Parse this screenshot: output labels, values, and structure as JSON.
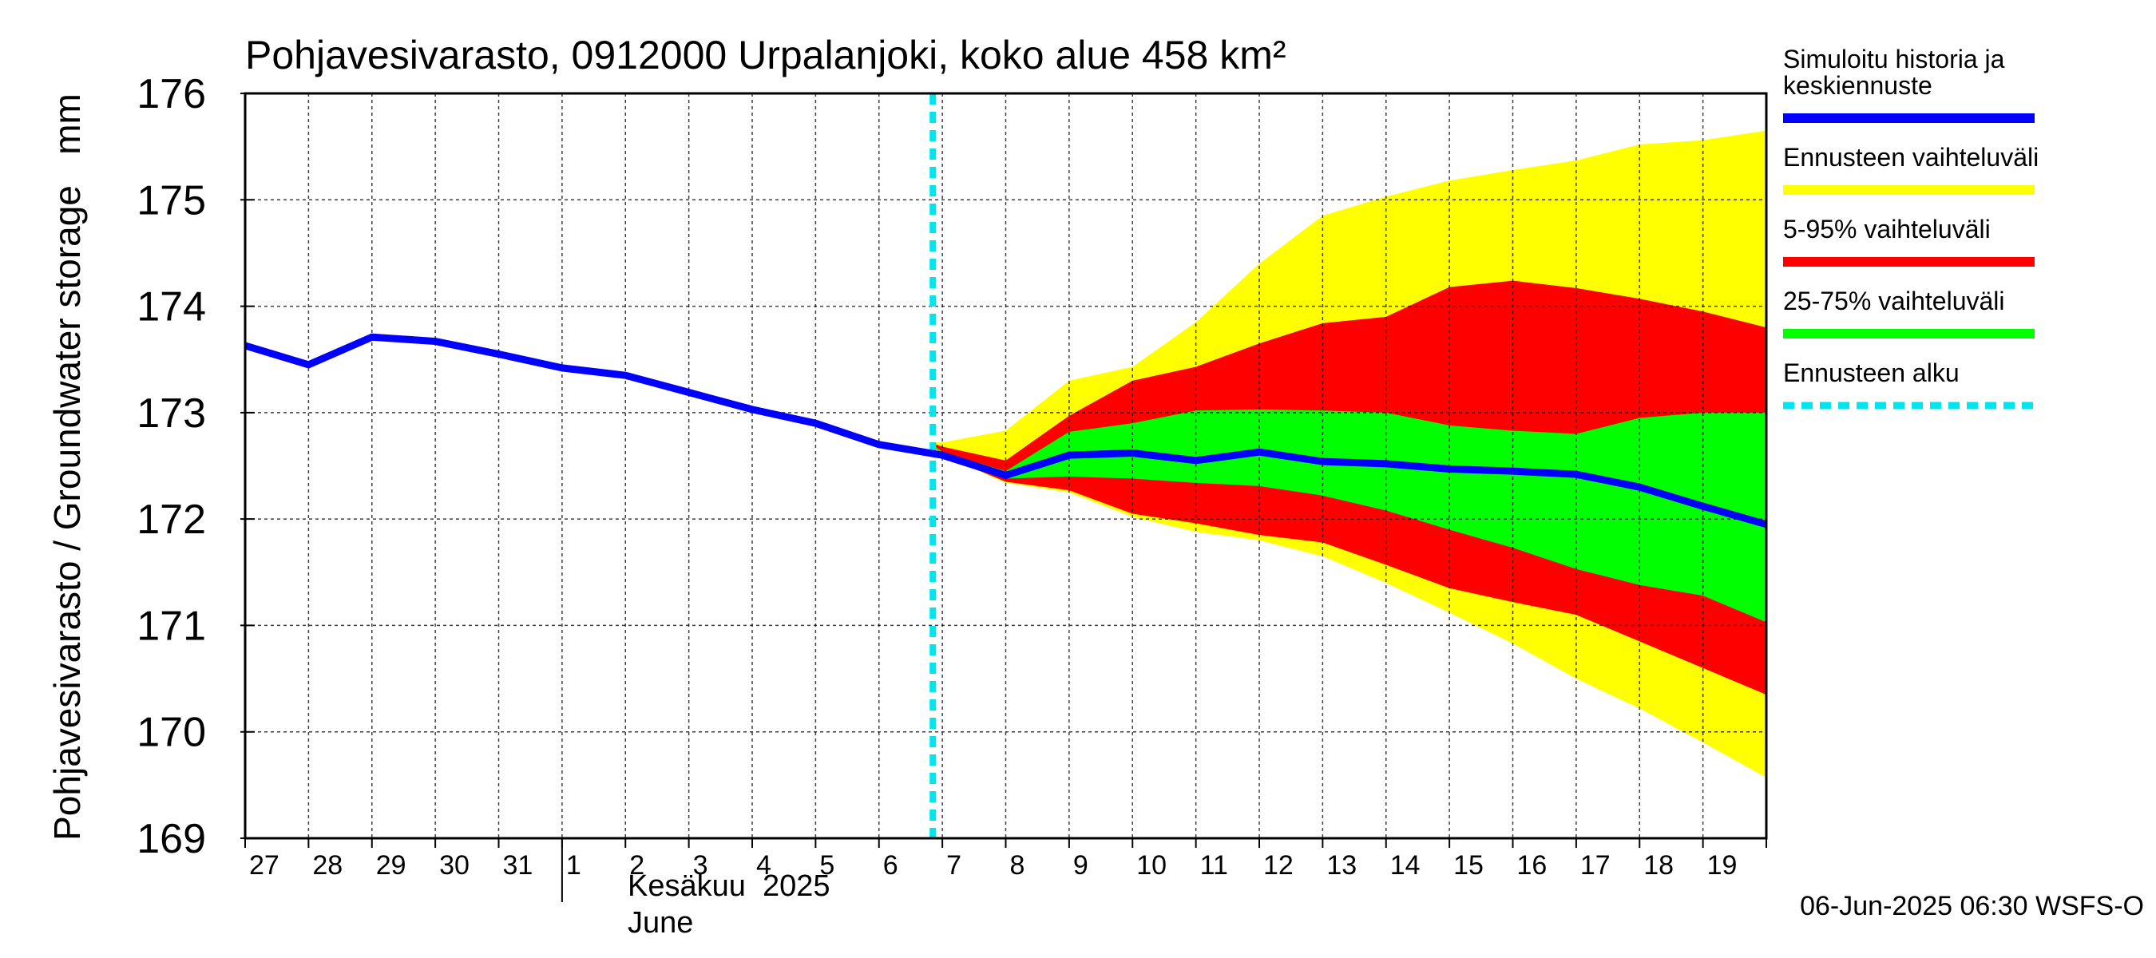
{
  "chart_data": {
    "type": "area",
    "title": "Pohjavesivarasto, 0912000 Urpalanjoki, koko alue 458 km²",
    "ylabel": "Pohjavesivarasto / Groundwater storage   mm",
    "ylim": [
      169,
      176
    ],
    "yticks": [
      169,
      170,
      171,
      172,
      173,
      174,
      175,
      176
    ],
    "x_range": [
      -10,
      14
    ],
    "day_ticks": [
      "27",
      "28",
      "29",
      "30",
      "31",
      "1",
      "2",
      "3",
      "4",
      "5",
      "6",
      "7",
      "8",
      "9",
      "10",
      "11",
      "12",
      "13",
      "14",
      "15",
      "16",
      "17",
      "18",
      "19"
    ],
    "month_label_fi": "Kesäkuu  2025",
    "month_label_en": "June",
    "forecast_start": 0.85,
    "x": [
      -10,
      -9,
      -8,
      -7,
      -6,
      -5,
      -4,
      -3,
      -2,
      -1,
      0,
      1,
      2,
      3,
      4,
      5,
      6,
      7,
      8,
      9,
      10,
      11,
      12,
      13,
      14
    ],
    "series": [
      {
        "name": "Simuloitu historia ja keskiennuste",
        "color": "#0000ff",
        "x": [
          -10,
          -9,
          -8,
          -7,
          -6,
          -5,
          -4,
          -3,
          -2,
          -1,
          0,
          1,
          2,
          3,
          4,
          5,
          6,
          7,
          8,
          9,
          10,
          11,
          12,
          13,
          14
        ],
        "values": [
          173.63,
          173.45,
          173.71,
          173.67,
          173.55,
          173.42,
          173.35,
          173.19,
          173.03,
          172.9,
          172.7,
          172.6,
          172.41,
          172.6,
          172.62,
          172.55,
          172.63,
          172.54,
          172.52,
          172.47,
          172.45,
          172.42,
          172.3,
          172.12,
          171.95
        ]
      }
    ],
    "bands": [
      {
        "name": "Ennusteen vaihteluväli",
        "color": "#ffff00",
        "x": [
          0.85,
          1,
          2,
          3,
          4,
          5,
          6,
          7,
          8,
          9,
          10,
          11,
          12,
          13,
          14
        ],
        "upper": [
          172.72,
          172.72,
          172.83,
          173.3,
          173.43,
          173.85,
          174.4,
          174.85,
          175.03,
          175.18,
          175.28,
          175.37,
          175.52,
          175.56,
          175.65
        ],
        "lower": [
          172.68,
          172.6,
          172.34,
          172.25,
          172.02,
          171.88,
          171.8,
          171.65,
          171.4,
          171.12,
          170.83,
          170.5,
          170.22,
          169.9,
          169.57
        ]
      },
      {
        "name": "5-95% vaihteluväli",
        "color": "#ff0000",
        "x": [
          0.85,
          1,
          2,
          3,
          4,
          5,
          6,
          7,
          8,
          9,
          10,
          11,
          12,
          13,
          14
        ],
        "upper": [
          172.71,
          172.68,
          172.55,
          172.97,
          173.3,
          173.43,
          173.65,
          173.84,
          173.9,
          174.18,
          174.24,
          174.17,
          174.07,
          173.95,
          173.8
        ],
        "lower": [
          172.69,
          172.6,
          172.35,
          172.27,
          172.05,
          171.96,
          171.85,
          171.78,
          171.57,
          171.35,
          171.22,
          171.1,
          170.85,
          170.6,
          170.35
        ]
      },
      {
        "name": "25-75% vaihteluväli",
        "color": "#00ff00",
        "x": [
          0.85,
          1,
          2,
          3,
          4,
          5,
          6,
          7,
          8,
          9,
          10,
          11,
          12,
          13,
          14
        ],
        "upper": [
          172.7,
          172.63,
          172.45,
          172.82,
          172.9,
          173.02,
          173.03,
          173.02,
          173.0,
          172.88,
          172.83,
          172.8,
          172.95,
          173.0,
          173.0
        ],
        "lower": [
          172.7,
          172.6,
          172.38,
          172.4,
          172.38,
          172.34,
          172.31,
          172.22,
          172.08,
          171.9,
          171.73,
          171.53,
          171.38,
          171.28,
          171.03
        ]
      }
    ],
    "legend": [
      {
        "label_lines": [
          "Simuloitu historia ja",
          "keskiennuste"
        ],
        "color": "#0000ff",
        "style": "solid"
      },
      {
        "label_lines": [
          "Ennusteen vaihteluväli"
        ],
        "color": "#ffff00",
        "style": "solid"
      },
      {
        "label_lines": [
          "5-95% vaihteluväli"
        ],
        "color": "#ff0000",
        "style": "solid"
      },
      {
        "label_lines": [
          "25-75% vaihteluväli"
        ],
        "color": "#00ff00",
        "style": "solid"
      },
      {
        "label_lines": [
          "Ennusteen alku"
        ],
        "color": "#00e5ee",
        "style": "dashed"
      }
    ],
    "legend_position": "right",
    "footer": "06-Jun-2025 06:30 WSFS-O",
    "grid": true
  }
}
